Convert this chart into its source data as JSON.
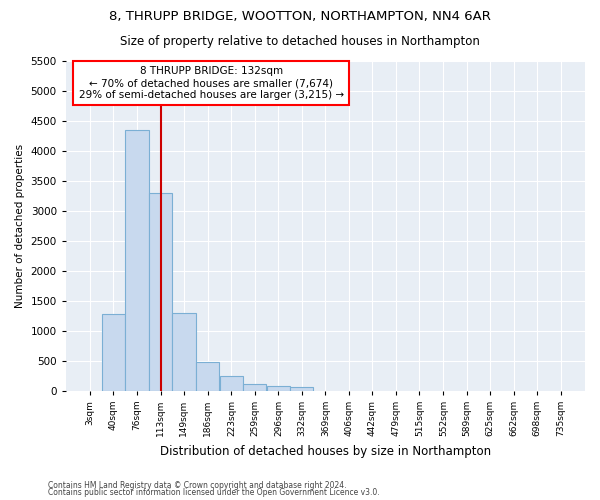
{
  "title": "8, THRUPP BRIDGE, WOOTTON, NORTHAMPTON, NN4 6AR",
  "subtitle": "Size of property relative to detached houses in Northampton",
  "xlabel": "Distribution of detached houses by size in Northampton",
  "ylabel": "Number of detached properties",
  "footnote1": "Contains HM Land Registry data © Crown copyright and database right 2024.",
  "footnote2": "Contains public sector information licensed under the Open Government Licence v3.0.",
  "annotation_line1": "8 THRUPP BRIDGE: 132sqm",
  "annotation_line2": "← 70% of detached houses are smaller (7,674)",
  "annotation_line3": "29% of semi-detached houses are larger (3,215) →",
  "bar_color": "#c8d9ee",
  "bar_edge_color": "#7bafd4",
  "vline_color": "#cc0000",
  "vline_x": 132,
  "categories": [
    "3sqm",
    "40sqm",
    "76sqm",
    "113sqm",
    "149sqm",
    "186sqm",
    "223sqm",
    "259sqm",
    "296sqm",
    "332sqm",
    "369sqm",
    "406sqm",
    "442sqm",
    "479sqm",
    "515sqm",
    "552sqm",
    "589sqm",
    "625sqm",
    "662sqm",
    "698sqm",
    "735sqm"
  ],
  "bin_starts": [
    3,
    40,
    76,
    113,
    149,
    186,
    223,
    259,
    296,
    332,
    369,
    406,
    442,
    479,
    515,
    552,
    589,
    625,
    662,
    698,
    735
  ],
  "bin_width": 37,
  "values": [
    0,
    1275,
    4350,
    3300,
    1300,
    475,
    240,
    110,
    75,
    55,
    0,
    0,
    0,
    0,
    0,
    0,
    0,
    0,
    0,
    0,
    0
  ],
  "ylim": [
    0,
    5500
  ],
  "yticks": [
    0,
    500,
    1000,
    1500,
    2000,
    2500,
    3000,
    3500,
    4000,
    4500,
    5000,
    5500
  ],
  "ax_facecolor": "#e8eef5",
  "background_color": "#ffffff",
  "grid_color": "#ffffff",
  "title_fontsize": 9.5,
  "subtitle_fontsize": 8.5
}
